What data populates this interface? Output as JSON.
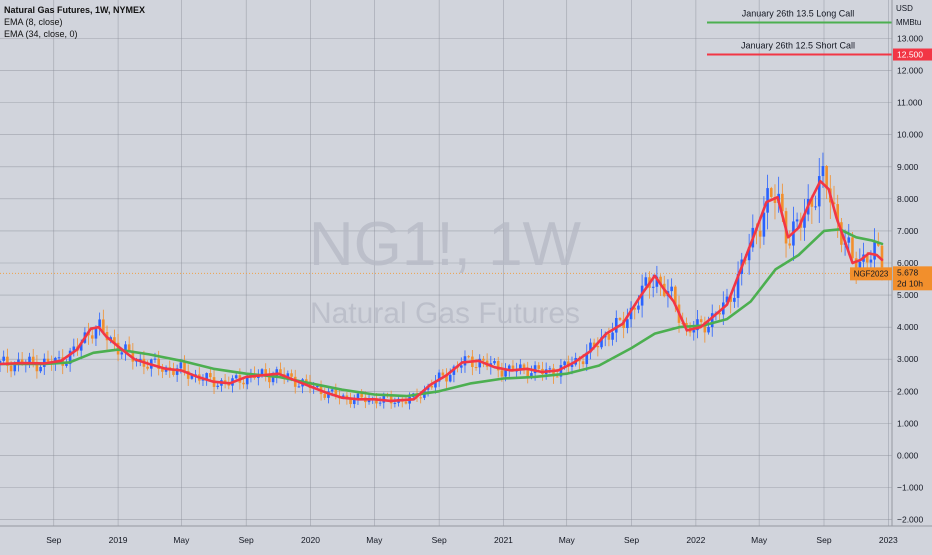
{
  "legend": {
    "main": "Natural Gas Futures, 1W, NYMEX",
    "ema_fast": "EMA (8, close)",
    "ema_slow": "EMA (34, close, 0)"
  },
  "watermark": {
    "symbol": "NG1!, 1W",
    "name": "Natural Gas Futures"
  },
  "price_badge": {
    "symbol": "NGF2023",
    "price": "5.678",
    "countdown": "2d 10h"
  },
  "annotations": [
    {
      "text": "January 26th 13.5 Long Call",
      "price": 13.5,
      "color": "#4caf50"
    },
    {
      "text": "January 26th 12.5 Short Call",
      "price": 12.5,
      "color": "#f23645"
    }
  ],
  "axis_header": {
    "currency": "USD",
    "unit": "MMBtu"
  },
  "chart_data": {
    "type": "line",
    "xlabel": "",
    "ylabel": "",
    "ylim": [
      -2.2,
      14.2
    ],
    "y_ticks": [
      13,
      12,
      11,
      10,
      9,
      8,
      7,
      6,
      5,
      4,
      3,
      2,
      1,
      0,
      -1,
      -2
    ],
    "y_tick_labels": [
      "13.000",
      "12.000",
      "11.000",
      "10.000",
      "9.000",
      "8.000",
      "7.000",
      "6.000",
      "5.000",
      "4.000",
      "3.000",
      "2.000",
      "1.000",
      "0.000",
      "−1.000",
      "−2.000"
    ],
    "highlight_label": "12.500",
    "x_ticks": [
      {
        "label": "Sep",
        "date": "2018-09-01"
      },
      {
        "label": "2019",
        "date": "2019-01-01"
      },
      {
        "label": "May",
        "date": "2019-05-01"
      },
      {
        "label": "Sep",
        "date": "2019-09-01"
      },
      {
        "label": "2020",
        "date": "2020-01-01"
      },
      {
        "label": "May",
        "date": "2020-05-01"
      },
      {
        "label": "Sep",
        "date": "2020-09-01"
      },
      {
        "label": "2021",
        "date": "2021-01-01"
      },
      {
        "label": "May",
        "date": "2021-05-01"
      },
      {
        "label": "Sep",
        "date": "2021-09-01"
      },
      {
        "label": "2022",
        "date": "2022-01-01"
      },
      {
        "label": "May",
        "date": "2022-05-01"
      },
      {
        "label": "Sep",
        "date": "2022-09-01"
      },
      {
        "label": "2023",
        "date": "2023-01-01"
      }
    ],
    "xlim": [
      "2018-05-22",
      "2023-01-08"
    ],
    "current_price": 5.678,
    "grid": true,
    "series": [
      {
        "color": "#f23645",
        "points": [
          [
            "2018-05-22",
            2.85
          ],
          [
            "2018-07-01",
            2.88
          ],
          [
            "2018-08-15",
            2.87
          ],
          [
            "2018-09-15",
            2.95
          ],
          [
            "2018-10-15",
            3.3
          ],
          [
            "2018-11-10",
            3.95
          ],
          [
            "2018-11-25",
            4.0
          ],
          [
            "2018-12-10",
            3.7
          ],
          [
            "2019-01-01",
            3.4
          ],
          [
            "2019-02-01",
            3.0
          ],
          [
            "2019-03-01",
            2.85
          ],
          [
            "2019-04-01",
            2.7
          ],
          [
            "2019-05-01",
            2.65
          ],
          [
            "2019-06-01",
            2.45
          ],
          [
            "2019-07-01",
            2.3
          ],
          [
            "2019-08-01",
            2.25
          ],
          [
            "2019-09-01",
            2.45
          ],
          [
            "2019-10-01",
            2.5
          ],
          [
            "2019-11-01",
            2.55
          ],
          [
            "2019-12-01",
            2.35
          ],
          [
            "2020-01-01",
            2.15
          ],
          [
            "2020-02-01",
            1.95
          ],
          [
            "2020-03-01",
            1.8
          ],
          [
            "2020-04-01",
            1.75
          ],
          [
            "2020-05-01",
            1.75
          ],
          [
            "2020-06-01",
            1.7
          ],
          [
            "2020-07-15",
            1.75
          ],
          [
            "2020-08-15",
            2.2
          ],
          [
            "2020-09-15",
            2.5
          ],
          [
            "2020-10-15",
            2.9
          ],
          [
            "2020-11-15",
            2.95
          ],
          [
            "2020-12-15",
            2.75
          ],
          [
            "2021-01-15",
            2.65
          ],
          [
            "2021-02-15",
            2.7
          ],
          [
            "2021-03-15",
            2.6
          ],
          [
            "2021-04-15",
            2.65
          ],
          [
            "2021-05-15",
            2.9
          ],
          [
            "2021-06-15",
            3.25
          ],
          [
            "2021-07-15",
            3.8
          ],
          [
            "2021-08-15",
            4.1
          ],
          [
            "2021-09-15",
            4.9
          ],
          [
            "2021-10-15",
            5.6
          ],
          [
            "2021-11-01",
            5.2
          ],
          [
            "2021-11-20",
            4.8
          ],
          [
            "2021-12-15",
            3.9
          ],
          [
            "2022-01-10",
            4.0
          ],
          [
            "2022-02-01",
            4.3
          ],
          [
            "2022-03-01",
            4.7
          ],
          [
            "2022-04-01",
            6.0
          ],
          [
            "2022-04-20",
            6.8
          ],
          [
            "2022-05-15",
            7.9
          ],
          [
            "2022-06-05",
            8.05
          ],
          [
            "2022-06-25",
            6.8
          ],
          [
            "2022-07-15",
            7.1
          ],
          [
            "2022-08-05",
            7.9
          ],
          [
            "2022-08-25",
            8.55
          ],
          [
            "2022-09-10",
            8.3
          ],
          [
            "2022-09-25",
            7.4
          ],
          [
            "2022-10-10",
            6.7
          ],
          [
            "2022-10-25",
            6.0
          ],
          [
            "2022-11-10",
            6.1
          ],
          [
            "2022-11-25",
            6.3
          ],
          [
            "2022-12-10",
            6.25
          ],
          [
            "2022-12-20",
            6.1
          ]
        ]
      },
      {
        "color": "#4caf50",
        "points": [
          [
            "2018-05-22",
            2.85
          ],
          [
            "2018-08-15",
            2.85
          ],
          [
            "2018-10-01",
            2.9
          ],
          [
            "2018-11-15",
            3.2
          ],
          [
            "2019-01-01",
            3.3
          ],
          [
            "2019-03-01",
            3.15
          ],
          [
            "2019-05-01",
            2.95
          ],
          [
            "2019-07-01",
            2.7
          ],
          [
            "2019-09-01",
            2.55
          ],
          [
            "2019-11-01",
            2.45
          ],
          [
            "2020-01-01",
            2.25
          ],
          [
            "2020-03-01",
            2.05
          ],
          [
            "2020-05-01",
            1.9
          ],
          [
            "2020-07-01",
            1.85
          ],
          [
            "2020-09-01",
            2.0
          ],
          [
            "2020-11-01",
            2.25
          ],
          [
            "2021-01-01",
            2.4
          ],
          [
            "2021-03-01",
            2.45
          ],
          [
            "2021-05-01",
            2.55
          ],
          [
            "2021-07-01",
            2.8
          ],
          [
            "2021-09-01",
            3.35
          ],
          [
            "2021-10-15",
            3.8
          ],
          [
            "2021-12-01",
            4.0
          ],
          [
            "2022-01-15",
            4.05
          ],
          [
            "2022-03-01",
            4.25
          ],
          [
            "2022-04-15",
            4.8
          ],
          [
            "2022-06-01",
            5.8
          ],
          [
            "2022-07-15",
            6.25
          ],
          [
            "2022-09-01",
            7.0
          ],
          [
            "2022-10-01",
            7.05
          ],
          [
            "2022-11-01",
            6.8
          ],
          [
            "2022-12-01",
            6.7
          ],
          [
            "2022-12-20",
            6.6
          ]
        ]
      }
    ]
  }
}
